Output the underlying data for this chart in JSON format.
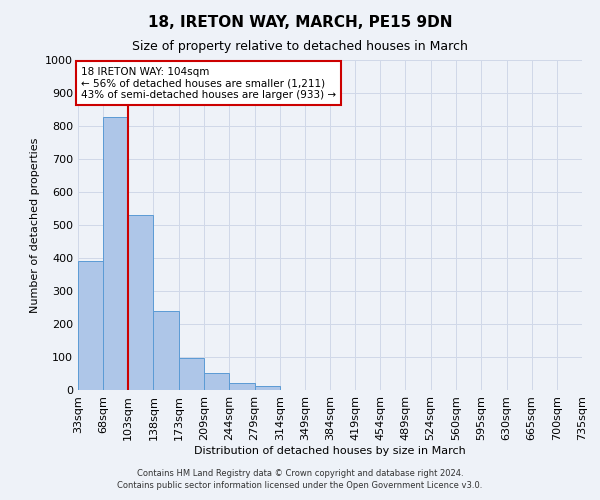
{
  "title": "18, IRETON WAY, MARCH, PE15 9DN",
  "subtitle": "Size of property relative to detached houses in March",
  "xlabel": "Distribution of detached houses by size in March",
  "ylabel": "Number of detached properties",
  "bin_edges": [
    33,
    68,
    103,
    138,
    173,
    209,
    244,
    279,
    314,
    349,
    384,
    419,
    454,
    489,
    524,
    560,
    595,
    630,
    665,
    700,
    735
  ],
  "bin_labels": [
    "33sqm",
    "68sqm",
    "103sqm",
    "138sqm",
    "173sqm",
    "209sqm",
    "244sqm",
    "279sqm",
    "314sqm",
    "349sqm",
    "384sqm",
    "419sqm",
    "454sqm",
    "489sqm",
    "524sqm",
    "560sqm",
    "595sqm",
    "630sqm",
    "665sqm",
    "700sqm",
    "735sqm"
  ],
  "counts": [
    390,
    828,
    530,
    240,
    97,
    52,
    22,
    12,
    0,
    0,
    0,
    0,
    0,
    0,
    0,
    0,
    0,
    0,
    0,
    0
  ],
  "bar_color": "#aec6e8",
  "bar_edge_color": "#5b9bd5",
  "property_line_x": 103,
  "property_line_color": "#cc0000",
  "annotation_text": "18 IRETON WAY: 104sqm\n← 56% of detached houses are smaller (1,211)\n43% of semi-detached houses are larger (933) →",
  "annotation_box_color": "#ffffff",
  "annotation_box_edge_color": "#cc0000",
  "ylim": [
    0,
    1000
  ],
  "yticks": [
    0,
    100,
    200,
    300,
    400,
    500,
    600,
    700,
    800,
    900,
    1000
  ],
  "grid_color": "#d0d8e8",
  "bg_color": "#eef2f8",
  "footer_line1": "Contains HM Land Registry data © Crown copyright and database right 2024.",
  "footer_line2": "Contains public sector information licensed under the Open Government Licence v3.0."
}
